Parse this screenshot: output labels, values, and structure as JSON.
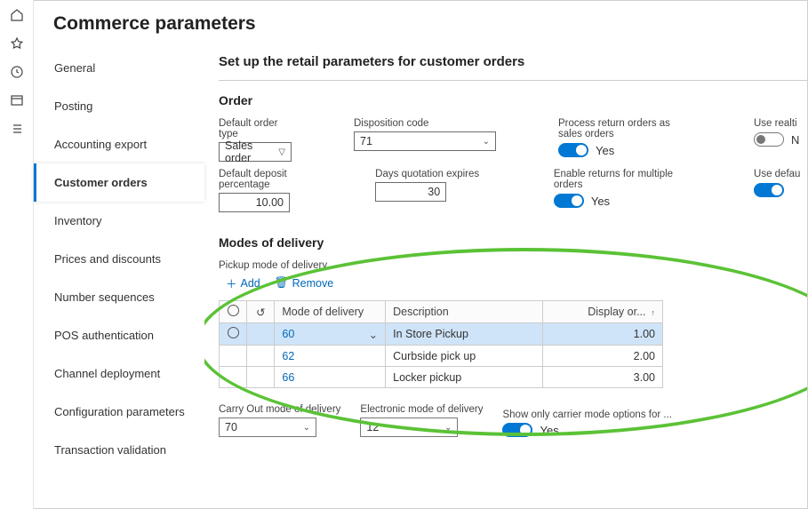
{
  "pageTitle": "Commerce parameters",
  "sideNav": [
    {
      "label": "General"
    },
    {
      "label": "Posting"
    },
    {
      "label": "Accounting export"
    },
    {
      "label": "Customer orders",
      "active": true
    },
    {
      "label": "Inventory"
    },
    {
      "label": "Prices and discounts"
    },
    {
      "label": "Number sequences"
    },
    {
      "label": "POS authentication"
    },
    {
      "label": "Channel deployment"
    },
    {
      "label": "Configuration parameters"
    },
    {
      "label": "Transaction validation"
    }
  ],
  "main": {
    "heading": "Set up the retail parameters for customer orders",
    "order": {
      "title": "Order",
      "defaultOrderType": {
        "label": "Default order type",
        "value": "Sales order"
      },
      "dispositionCode": {
        "label": "Disposition code",
        "value": "71"
      },
      "processReturn": {
        "label": "Process return orders as sales orders",
        "value": "Yes",
        "on": true
      },
      "useRealtime": {
        "label": "Use realti"
      },
      "defaultDeposit": {
        "label": "Default deposit percentage",
        "value": "10.00"
      },
      "daysQuotation": {
        "label": "Days quotation expires",
        "value": "30"
      },
      "enableReturns": {
        "label": "Enable returns for multiple orders",
        "value": "Yes",
        "on": true
      },
      "useDefault": {
        "label": "Use defau",
        "on": true
      }
    },
    "modes": {
      "title": "Modes of delivery",
      "pickupLabel": "Pickup mode of delivery",
      "addLabel": "Add",
      "removeLabel": "Remove",
      "cols": {
        "mode": "Mode of delivery",
        "desc": "Description",
        "disp": "Display or..."
      },
      "rows": [
        {
          "mode": "60",
          "desc": "In Store Pickup",
          "disp": "1.00",
          "selected": true
        },
        {
          "mode": "62",
          "desc": "Curbside pick up",
          "disp": "2.00"
        },
        {
          "mode": "66",
          "desc": "Locker pickup",
          "disp": "3.00"
        }
      ],
      "carryOut": {
        "label": "Carry Out mode of delivery",
        "value": "70"
      },
      "electronic": {
        "label": "Electronic mode of delivery",
        "value": "12"
      },
      "showOnly": {
        "label": "Show only carrier mode options for ...",
        "value": "Yes",
        "on": true
      }
    }
  },
  "highlight": {
    "stroke": "#5bc236"
  }
}
